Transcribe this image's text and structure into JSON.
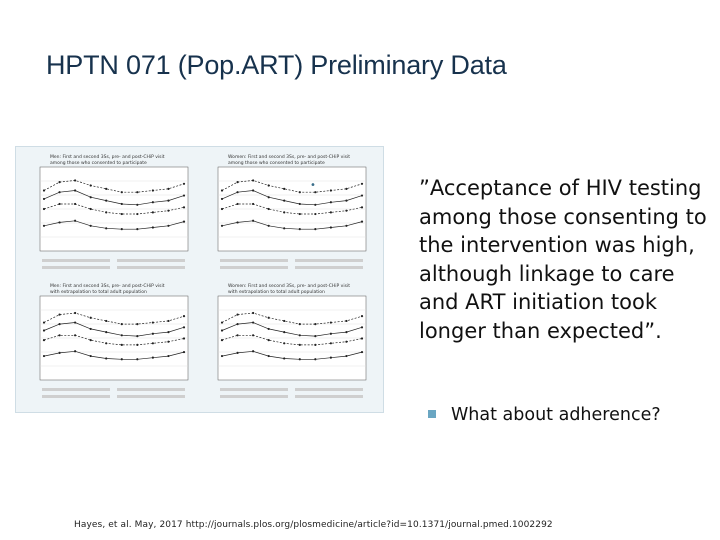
{
  "title": "HPTN 071 (Pop.ART) Preliminary Data",
  "bullet": {
    "marker": "•",
    "text": "”Acceptance of HIV testing among those consenting to the intervention was high, although linkage to care and ART initiation took longer than expected”."
  },
  "sub_bullet": "What about adherence?",
  "citation": "Hayes, et al. May, 2017 http://journals.plos.org/plosmedicine/article?id=10.1371/journal.pmed.1002292",
  "figure": {
    "panels": [
      {
        "title_line1": "Men: First and second 3Ss, pre- and post-CHiP visit",
        "title_line2": "among those who consented to participate"
      },
      {
        "title_line1": "Women: First and second 3Ss, pre- and post-CHiP visit",
        "title_line2": "among those who consented to participate"
      },
      {
        "title_line1": "Men: First and second 3Ss, pre- and post-CHiP visit",
        "title_line2": "with extrapolation to total adult population"
      },
      {
        "title_line1": "Women: First and second 3Ss, pre- and post-CHiP visit",
        "title_line2": "with extrapolation to total adult population"
      }
    ]
  }
}
